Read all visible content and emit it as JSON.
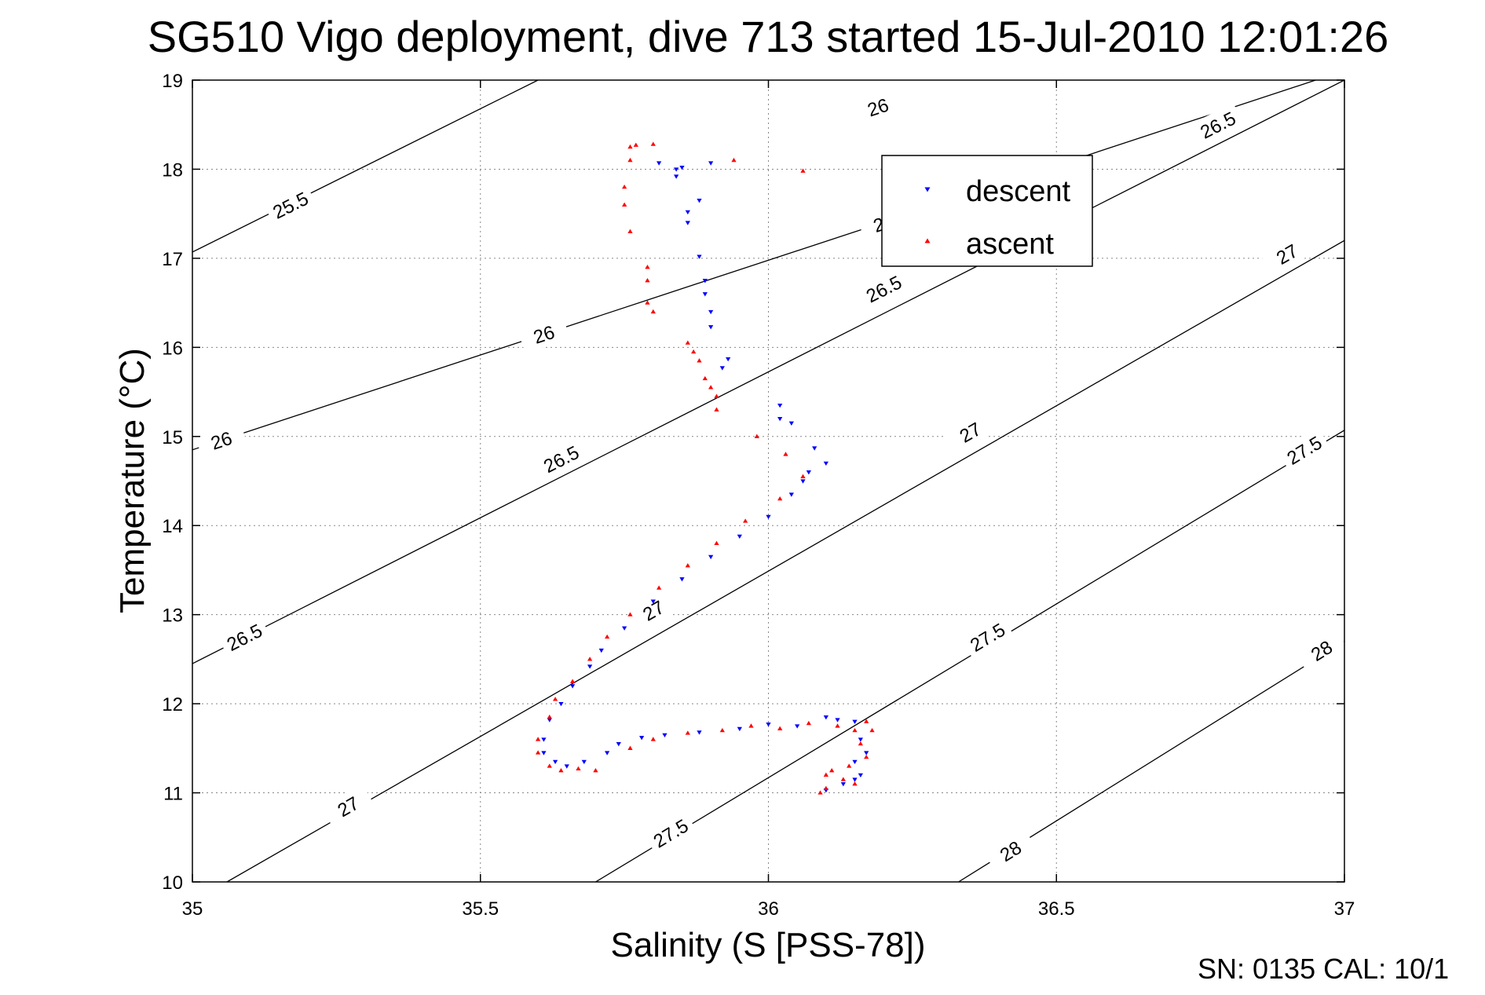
{
  "chart_data": {
    "type": "scatter",
    "title": "SG510 Vigo deployment, dive 713 started 15-Jul-2010 12:01:26",
    "xlabel": "Salinity (S [PSS-78])",
    "ylabel": "Temperature (°C)",
    "xlim": [
      35,
      37
    ],
    "ylim": [
      10,
      19
    ],
    "x_ticks": [
      "35",
      "35.5",
      "36",
      "36.5",
      "37"
    ],
    "y_ticks": [
      "10",
      "11",
      "12",
      "13",
      "14",
      "15",
      "16",
      "17",
      "18",
      "19"
    ],
    "grid": true,
    "legend_position": "top-right",
    "footer": "SN: 0135  CAL: 10/1",
    "contours": [
      {
        "label": "25.5",
        "points": [
          [
            35.0,
            17.07
          ],
          [
            35.6,
            19.0
          ]
        ],
        "label_at": [
          [
            35.17,
            17.6
          ]
        ]
      },
      {
        "label": "26",
        "points": [
          [
            35.0,
            14.85
          ],
          [
            36.95,
            19.0
          ]
        ],
        "label_at": [
          [
            35.05,
            14.96
          ],
          [
            35.61,
            16.15
          ],
          [
            36.2,
            17.4
          ],
          [
            36.19,
            18.7
          ]
        ]
      },
      {
        "label": "26.5",
        "points": [
          [
            35.0,
            12.45
          ],
          [
            37.0,
            19.0
          ]
        ],
        "label_at": [
          [
            35.09,
            12.75
          ],
          [
            35.64,
            14.75
          ],
          [
            36.2,
            16.66
          ],
          [
            36.78,
            18.5
          ]
        ]
      },
      {
        "label": "27",
        "points": [
          [
            35.06,
            10.0
          ],
          [
            37.0,
            17.2
          ]
        ],
        "label_at": [
          [
            35.27,
            10.85
          ],
          [
            35.8,
            13.05
          ],
          [
            36.35,
            15.05
          ],
          [
            36.9,
            17.05
          ]
        ]
      },
      {
        "label": "27.5",
        "points": [
          [
            35.7,
            10.0
          ],
          [
            37.0,
            15.07
          ]
        ],
        "label_at": [
          [
            35.83,
            10.55
          ],
          [
            36.38,
            12.75
          ],
          [
            36.93,
            14.85
          ]
        ]
      },
      {
        "label": "28",
        "points": [
          [
            36.33,
            10.0
          ],
          [
            37.0,
            12.7
          ]
        ],
        "label_at": [
          [
            36.42,
            10.35
          ],
          [
            36.96,
            12.6
          ]
        ]
      }
    ],
    "series": [
      {
        "name": "descent",
        "color": "#0000ff",
        "marker": "triangle-down",
        "points": [
          [
            35.81,
            18.07
          ],
          [
            35.84,
            18.0
          ],
          [
            35.84,
            17.92
          ],
          [
            35.85,
            18.02
          ],
          [
            35.88,
            17.65
          ],
          [
            35.9,
            18.07
          ],
          [
            35.86,
            17.52
          ],
          [
            35.86,
            17.4
          ],
          [
            35.88,
            17.02
          ],
          [
            35.89,
            16.75
          ],
          [
            35.89,
            16.6
          ],
          [
            35.9,
            16.4
          ],
          [
            35.9,
            16.23
          ],
          [
            35.93,
            15.87
          ],
          [
            35.92,
            15.77
          ],
          [
            36.02,
            15.35
          ],
          [
            36.02,
            15.2
          ],
          [
            36.04,
            15.15
          ],
          [
            36.08,
            14.87
          ],
          [
            36.1,
            14.7
          ],
          [
            36.07,
            14.6
          ],
          [
            36.06,
            14.5
          ],
          [
            36.04,
            14.35
          ],
          [
            36.0,
            14.1
          ],
          [
            35.95,
            13.88
          ],
          [
            35.9,
            13.65
          ],
          [
            35.85,
            13.4
          ],
          [
            35.8,
            13.15
          ],
          [
            35.75,
            12.85
          ],
          [
            35.71,
            12.6
          ],
          [
            35.69,
            12.42
          ],
          [
            35.66,
            12.2
          ],
          [
            35.64,
            12.0
          ],
          [
            35.62,
            11.82
          ],
          [
            35.61,
            11.6
          ],
          [
            35.61,
            11.45
          ],
          [
            35.63,
            11.35
          ],
          [
            35.65,
            11.3
          ],
          [
            35.68,
            11.35
          ],
          [
            35.72,
            11.45
          ],
          [
            35.74,
            11.55
          ],
          [
            35.78,
            11.62
          ],
          [
            35.82,
            11.65
          ],
          [
            35.88,
            11.68
          ],
          [
            35.95,
            11.72
          ],
          [
            36.0,
            11.77
          ],
          [
            36.05,
            11.75
          ],
          [
            36.1,
            11.85
          ],
          [
            36.12,
            11.82
          ],
          [
            36.15,
            11.8
          ],
          [
            36.16,
            11.6
          ],
          [
            36.17,
            11.45
          ],
          [
            36.15,
            11.35
          ],
          [
            36.16,
            11.2
          ],
          [
            36.15,
            11.15
          ],
          [
            36.13,
            11.1
          ],
          [
            36.1,
            11.03
          ]
        ]
      },
      {
        "name": "ascent",
        "color": "#ff0000",
        "marker": "triangle-up",
        "points": [
          [
            35.76,
            18.25
          ],
          [
            35.77,
            18.27
          ],
          [
            35.8,
            18.28
          ],
          [
            35.76,
            18.1
          ],
          [
            35.75,
            17.8
          ],
          [
            35.75,
            17.6
          ],
          [
            35.76,
            17.3
          ],
          [
            35.79,
            16.9
          ],
          [
            35.79,
            16.75
          ],
          [
            35.79,
            16.5
          ],
          [
            35.8,
            16.4
          ],
          [
            35.94,
            18.1
          ],
          [
            36.06,
            17.98
          ],
          [
            35.86,
            16.05
          ],
          [
            35.87,
            15.95
          ],
          [
            35.88,
            15.85
          ],
          [
            35.89,
            15.65
          ],
          [
            35.9,
            15.55
          ],
          [
            35.91,
            15.45
          ],
          [
            35.91,
            15.3
          ],
          [
            35.98,
            15.0
          ],
          [
            36.03,
            14.8
          ],
          [
            36.06,
            14.55
          ],
          [
            36.02,
            14.3
          ],
          [
            35.96,
            14.05
          ],
          [
            35.91,
            13.8
          ],
          [
            35.86,
            13.55
          ],
          [
            35.81,
            13.3
          ],
          [
            35.76,
            13.0
          ],
          [
            35.72,
            12.75
          ],
          [
            35.69,
            12.5
          ],
          [
            35.66,
            12.25
          ],
          [
            35.63,
            12.05
          ],
          [
            35.62,
            11.85
          ],
          [
            35.6,
            11.6
          ],
          [
            35.6,
            11.45
          ],
          [
            35.62,
            11.3
          ],
          [
            35.64,
            11.25
          ],
          [
            35.67,
            11.27
          ],
          [
            35.7,
            11.25
          ],
          [
            35.76,
            11.5
          ],
          [
            35.8,
            11.6
          ],
          [
            35.86,
            11.67
          ],
          [
            35.92,
            11.7
          ],
          [
            35.97,
            11.75
          ],
          [
            36.02,
            11.72
          ],
          [
            36.07,
            11.78
          ],
          [
            36.12,
            11.75
          ],
          [
            36.15,
            11.7
          ],
          [
            36.17,
            11.8
          ],
          [
            36.18,
            11.7
          ],
          [
            36.16,
            11.55
          ],
          [
            36.17,
            11.4
          ],
          [
            36.14,
            11.3
          ],
          [
            36.11,
            11.25
          ],
          [
            36.1,
            11.2
          ],
          [
            36.09,
            11.0
          ],
          [
            36.1,
            11.05
          ],
          [
            36.13,
            11.15
          ],
          [
            36.15,
            11.1
          ]
        ]
      }
    ]
  }
}
